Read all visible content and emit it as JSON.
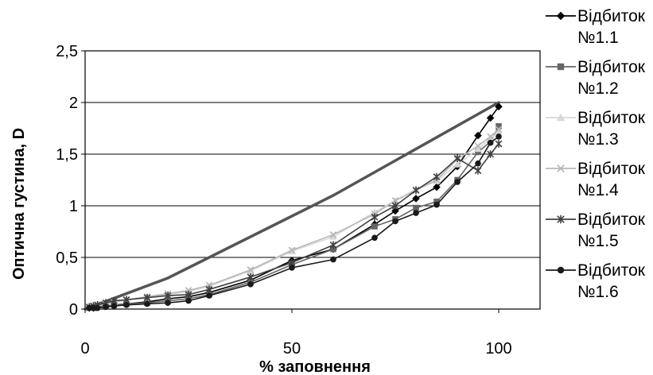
{
  "chart_data": {
    "type": "line",
    "xlabel": "% заповнення",
    "ylabel": "Оптична густина, D",
    "xlim": [
      0,
      110
    ],
    "ylim": [
      0,
      2.5
    ],
    "xticks": [
      0,
      50,
      100
    ],
    "xtick_labels": [
      "0",
      "50",
      "100"
    ],
    "yticks": [
      0,
      0.5,
      1,
      1.5,
      2,
      2.5
    ],
    "ytick_labels": [
      "0",
      "0,5",
      "1",
      "1,5",
      "2",
      "2,5"
    ],
    "grid": "horizontal",
    "legend_position": "right",
    "reference_line": {
      "x": [
        0,
        20,
        60,
        100
      ],
      "y": [
        0,
        0.3,
        1.1,
        2.0
      ],
      "color": "#555555"
    },
    "series": [
      {
        "name": "Відбиток №1.1",
        "marker": "diamond",
        "color": "#000000",
        "x": [
          1,
          2,
          3,
          5,
          7,
          10,
          15,
          20,
          25,
          30,
          40,
          50,
          60,
          70,
          75,
          80,
          85,
          90,
          95,
          98,
          100
        ],
        "y": [
          0.01,
          0.01,
          0.02,
          0.03,
          0.04,
          0.05,
          0.07,
          0.1,
          0.12,
          0.16,
          0.28,
          0.47,
          0.58,
          0.82,
          0.95,
          1.07,
          1.18,
          1.38,
          1.68,
          1.85,
          1.96
        ]
      },
      {
        "name": "Відбиток №1.2",
        "marker": "square",
        "color": "#666666",
        "x": [
          1,
          2,
          3,
          5,
          7,
          10,
          15,
          20,
          25,
          30,
          40,
          50,
          60,
          70,
          75,
          80,
          85,
          90,
          95,
          98,
          100
        ],
        "y": [
          0.01,
          0.01,
          0.02,
          0.03,
          0.04,
          0.05,
          0.06,
          0.08,
          0.1,
          0.14,
          0.26,
          0.43,
          0.58,
          0.8,
          0.87,
          0.98,
          1.04,
          1.25,
          1.52,
          1.62,
          1.77
        ]
      },
      {
        "name": "Відбиток №1.3",
        "marker": "triangle",
        "color": "#d8d8d8",
        "x": [
          1,
          2,
          3,
          5,
          7,
          10,
          15,
          20,
          25,
          30,
          40,
          50,
          60,
          70,
          75,
          80,
          85,
          90,
          95,
          98,
          100
        ],
        "y": [
          0.01,
          0.02,
          0.03,
          0.05,
          0.07,
          0.09,
          0.11,
          0.14,
          0.17,
          0.22,
          0.37,
          0.56,
          0.7,
          0.94,
          1.05,
          1.16,
          1.24,
          1.4,
          1.55,
          1.65,
          1.72
        ]
      },
      {
        "name": "Відбиток №1.4",
        "marker": "x",
        "color": "#b8b8b8",
        "x": [
          1,
          2,
          3,
          5,
          7,
          10,
          15,
          20,
          25,
          30,
          40,
          50,
          60,
          70,
          75,
          80,
          85,
          90,
          95,
          98,
          100
        ],
        "y": [
          0.01,
          0.02,
          0.03,
          0.05,
          0.07,
          0.09,
          0.12,
          0.15,
          0.18,
          0.23,
          0.38,
          0.57,
          0.72,
          0.92,
          1.05,
          1.15,
          1.25,
          1.45,
          1.58,
          1.67,
          1.74
        ]
      },
      {
        "name": "Відбиток №1.5",
        "marker": "star",
        "color": "#404040",
        "x": [
          1,
          2,
          3,
          5,
          7,
          10,
          15,
          20,
          25,
          30,
          40,
          50,
          60,
          70,
          75,
          80,
          85,
          90,
          95,
          98,
          100
        ],
        "y": [
          0.02,
          0.03,
          0.04,
          0.06,
          0.08,
          0.09,
          0.11,
          0.13,
          0.14,
          0.19,
          0.31,
          0.45,
          0.62,
          0.89,
          1.0,
          1.15,
          1.28,
          1.46,
          1.34,
          1.5,
          1.6
        ]
      },
      {
        "name": "Відбиток №1.6",
        "marker": "circle",
        "color": "#1a1a1a",
        "x": [
          1,
          2,
          3,
          5,
          7,
          10,
          15,
          20,
          25,
          30,
          40,
          50,
          60,
          70,
          75,
          80,
          85,
          90,
          95,
          98,
          100
        ],
        "y": [
          0.01,
          0.01,
          0.01,
          0.02,
          0.03,
          0.04,
          0.05,
          0.06,
          0.08,
          0.13,
          0.24,
          0.4,
          0.48,
          0.69,
          0.85,
          0.93,
          1.01,
          1.23,
          1.41,
          1.61,
          1.67
        ]
      }
    ]
  }
}
